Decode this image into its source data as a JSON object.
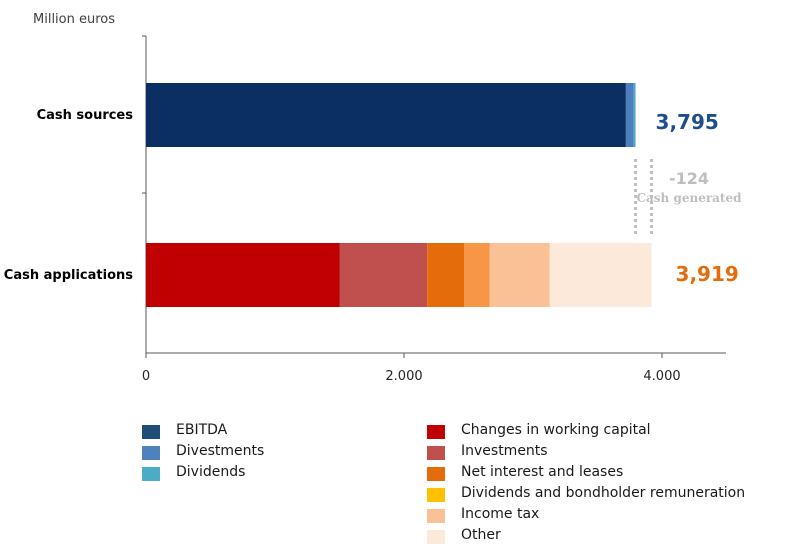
{
  "chart_data": {
    "type": "bar",
    "orientation": "horizontal",
    "stacked": true,
    "unit_label": "Million euros",
    "categories": [
      "Cash sources",
      "Cash applications"
    ],
    "xlim": [
      0,
      4500
    ],
    "x_ticks": [
      0,
      2000,
      4000
    ],
    "x_tick_labels": [
      "0",
      "2.000",
      "4.000"
    ],
    "grid": false,
    "series": [
      {
        "name": "EBITDA",
        "color": "#0b2e63",
        "values": [
          3720,
          0
        ]
      },
      {
        "name": "Divestments",
        "color": "#4d7fbf",
        "values": [
          60,
          0
        ]
      },
      {
        "name": "Dividends",
        "color": "#52a9cb",
        "values": [
          15,
          0
        ]
      },
      {
        "name": "Changes in working capital",
        "color": "#c00000",
        "values": [
          0,
          1500
        ]
      },
      {
        "name": "Investments",
        "color": "#c0504d",
        "values": [
          0,
          680
        ]
      },
      {
        "name": "Net interest and leases",
        "color": "#e46c0a",
        "values": [
          0,
          285
        ]
      },
      {
        "name": "Dividends and bondholder remuneration",
        "color": "#f79646",
        "values": [
          0,
          200
        ]
      },
      {
        "name": "Income tax",
        "color": "#f9c195",
        "values": [
          0,
          465
        ]
      },
      {
        "name": "Other",
        "color": "#fde9d9",
        "values": [
          0,
          789
        ]
      }
    ],
    "totals": [
      {
        "label": "3,795",
        "value": 3795,
        "color": "#1f4e8c"
      },
      {
        "label": "3,919",
        "value": 3919,
        "color": "#e46c0a"
      }
    ],
    "annotation": {
      "value_label": "-124",
      "text": "Cash generated",
      "color": "#bfbfbf"
    }
  },
  "legend": {
    "left": [
      "EBITDA",
      "Divestments",
      "Dividends"
    ],
    "right": [
      "Changes in working capital",
      "Investments",
      "Net interest and leases",
      "Dividends and bondholder remuneration",
      "Income tax",
      "Other"
    ],
    "left_colors": [
      "#1f4e79",
      "#4f81bd",
      "#4bacc6"
    ],
    "right_colors": [
      "#c00000",
      "#c0504d",
      "#e46c0a",
      "#ffc000",
      "#f9c195",
      "#fde9d9"
    ]
  }
}
